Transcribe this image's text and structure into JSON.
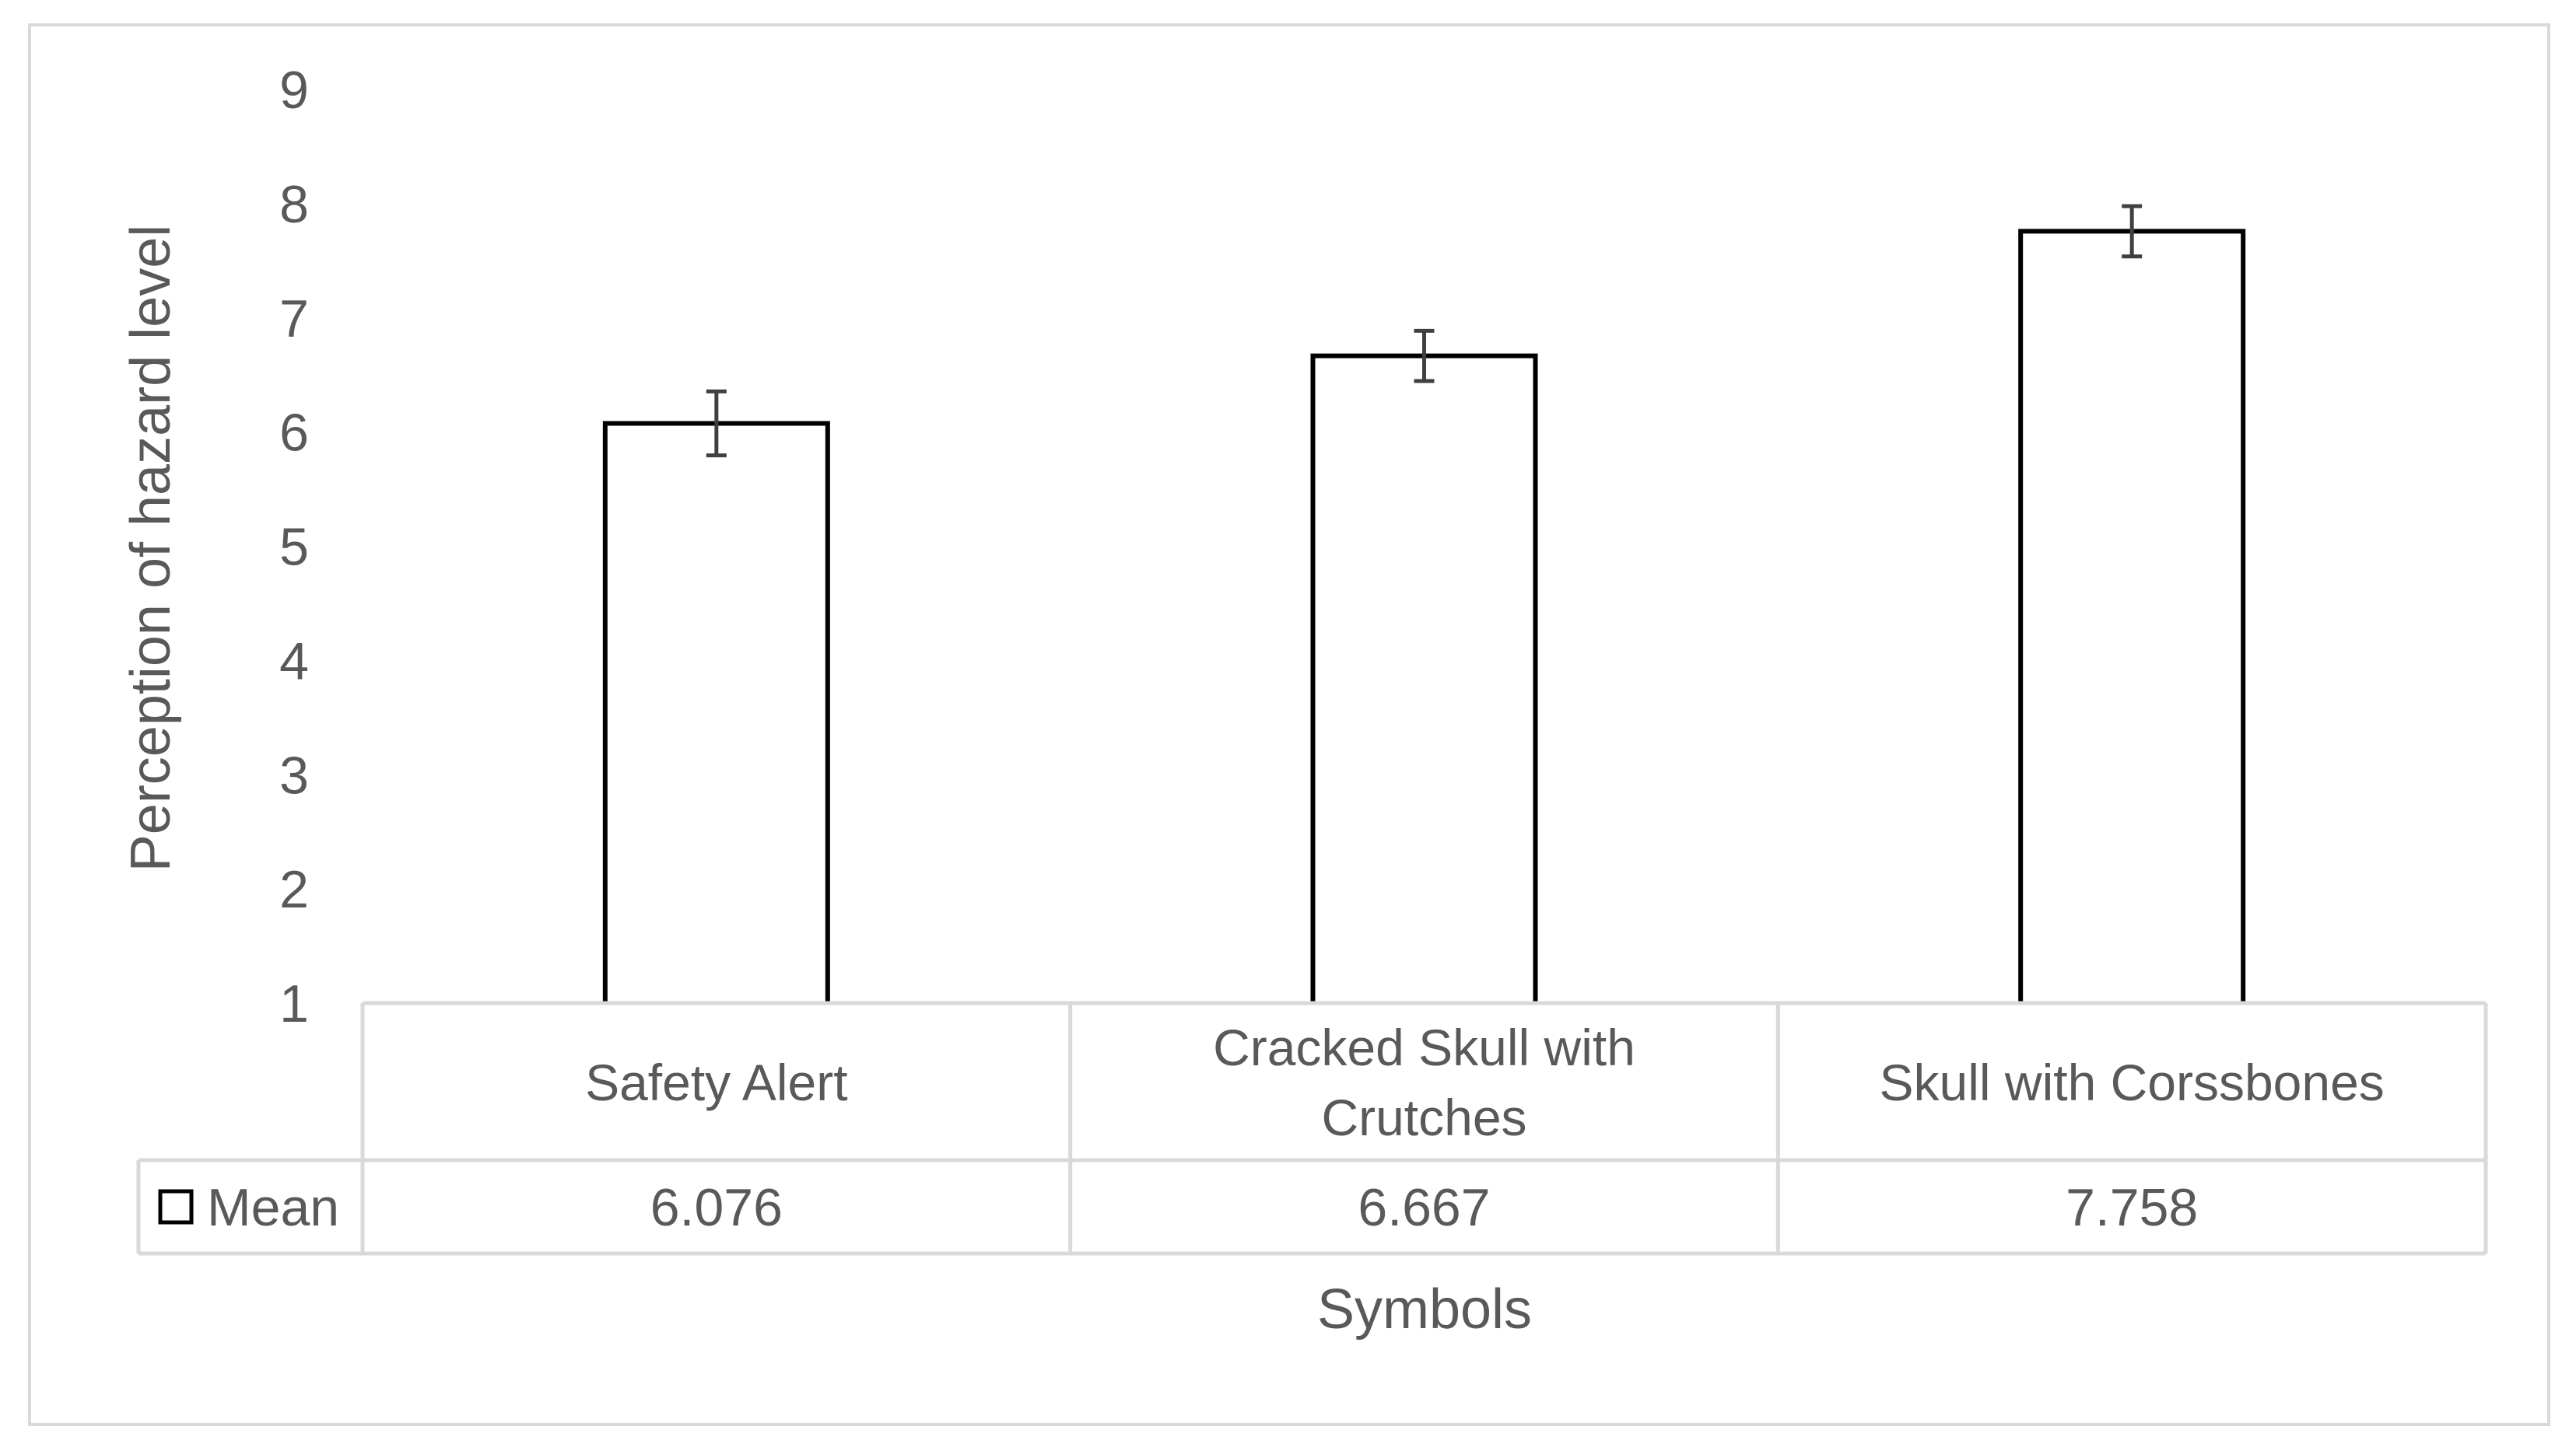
{
  "chart_data": {
    "type": "bar",
    "title": "",
    "xlabel": "Symbols",
    "ylabel": "Perception of hazard level",
    "categories": [
      [
        "Safety Alert"
      ],
      [
        "Cracked Skull with",
        "Crutches"
      ],
      [
        "Skull with Corssbones"
      ]
    ],
    "series": [
      {
        "name": "Mean",
        "values": [
          6.076,
          6.667,
          7.758
        ],
        "value_labels": [
          "6.076",
          "6.667",
          "7.758"
        ],
        "error": [
          0.28,
          0.22,
          0.22
        ],
        "fill": "#ffffff",
        "stroke": "#000000"
      }
    ],
    "yticks": [
      "1",
      "2",
      "3",
      "4",
      "5",
      "6",
      "7",
      "8",
      "9"
    ],
    "ylim": [
      1,
      9
    ],
    "grid": false,
    "legend": "data-table",
    "colors": {
      "text": "#595959",
      "table_border": "#d9d9d9",
      "frame_border": "#d9d9d9",
      "error_bar": "#404040"
    }
  }
}
